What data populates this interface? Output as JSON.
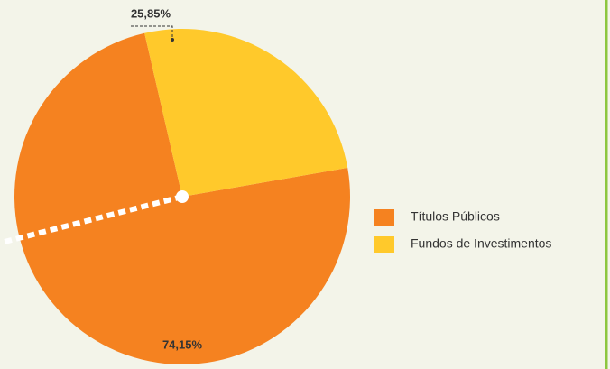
{
  "chart_data": {
    "type": "pie",
    "categories": [
      "Títulos Públicos",
      "Fundos de Investimentos"
    ],
    "values": [
      74.15,
      25.85
    ],
    "value_labels": [
      "74,15%",
      "25,85%"
    ],
    "colors": [
      "#f58220",
      "#ffc92b"
    ],
    "legend": "right"
  }
}
